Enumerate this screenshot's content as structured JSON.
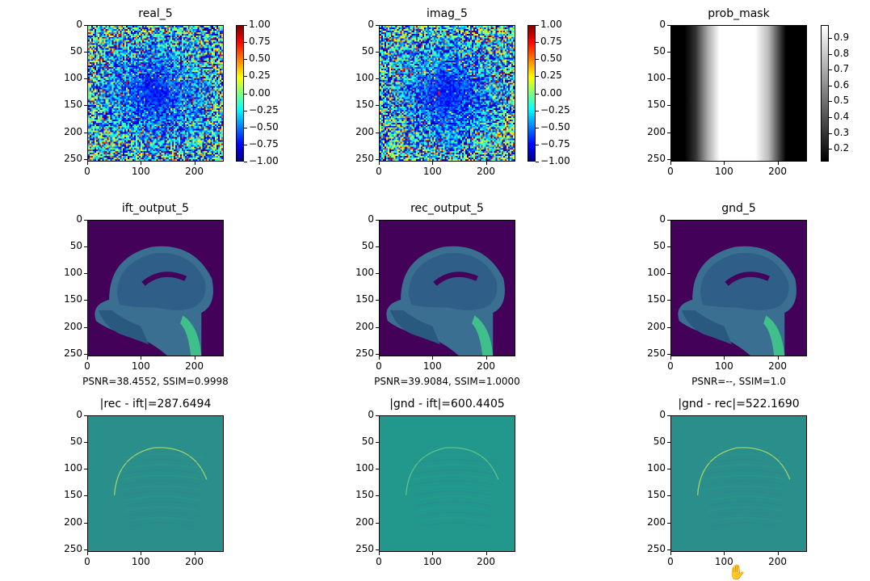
{
  "panels": [
    {
      "id": "real",
      "title": "real_5",
      "kind": "noise",
      "colorbar": "jet"
    },
    {
      "id": "imag",
      "title": "imag_5",
      "kind": "noise",
      "colorbar": "jet"
    },
    {
      "id": "prob",
      "title": "prob_mask",
      "kind": "mask",
      "colorbar": "gray"
    },
    {
      "id": "ift",
      "title": "ift_output_5",
      "kind": "mri",
      "caption": "PSNR=38.4552, SSIM=0.9998"
    },
    {
      "id": "rec",
      "title": "rec_output_5",
      "kind": "mri",
      "caption": "PSNR=39.9084, SSIM=1.0000"
    },
    {
      "id": "gnd",
      "title": "gnd_5",
      "kind": "mri",
      "caption": "PSNR=--, SSIM=1.0"
    },
    {
      "id": "d1",
      "title": "|rec - ift|=287.6494",
      "kind": "diff"
    },
    {
      "id": "d2",
      "title": "|gnd - ift|=600.4405",
      "kind": "diff2"
    },
    {
      "id": "d3",
      "title": "|gnd - rec|=522.1690",
      "kind": "diff"
    }
  ],
  "yticks": [
    "0",
    "50",
    "100",
    "150",
    "200",
    "250"
  ],
  "xticks": [
    "0",
    "100",
    "200"
  ],
  "jet_colorbar_ticks": [
    "1.00",
    "0.75",
    "0.50",
    "0.25",
    "0.00",
    "−0.25",
    "−0.50",
    "−0.75",
    "−1.00"
  ],
  "gray_colorbar_ticks": [
    "0.9",
    "0.8",
    "0.7",
    "0.6",
    "0.5",
    "0.4",
    "0.3",
    "0.2"
  ],
  "colors": {
    "viridis_dark": "#44015a",
    "diff_teal": "#2a8e8a",
    "mri_teal": "#3f7f9c"
  },
  "cursor_icon": "hand-grab-icon"
}
